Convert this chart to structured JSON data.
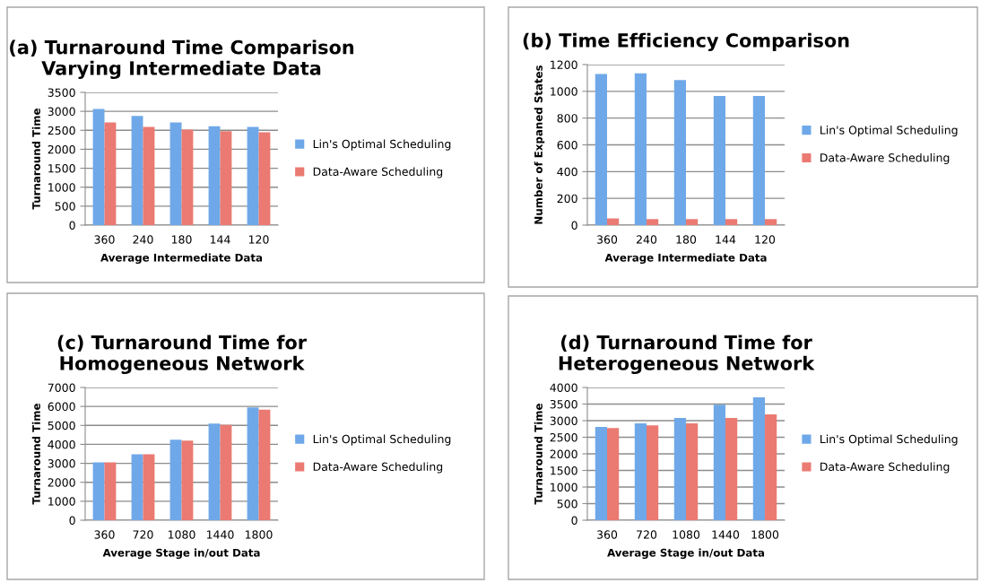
{
  "chart_data": [
    {
      "type": "bar",
      "title": "(a) Turnaround Time Comparison\nVarying Intermediate Data",
      "xlabel": "Average Intermediate Data",
      "ylabel": "Turnaround Time",
      "categories": [
        "360",
        "240",
        "180",
        "144",
        "120"
      ],
      "series": [
        {
          "name": "Lin's Optimal Scheduling",
          "color": "#6fa8e8",
          "values": [
            3060,
            2880,
            2710,
            2610,
            2590
          ]
        },
        {
          "name": "Data-Aware Scheduling",
          "color": "#ea7a72",
          "values": [
            2710,
            2590,
            2520,
            2480,
            2450
          ]
        }
      ],
      "ylim": [
        0,
        3500
      ],
      "yticks": [
        0,
        500,
        1000,
        1500,
        2000,
        2500,
        3000,
        3500
      ],
      "grid": "y",
      "legend": "right"
    },
    {
      "type": "bar",
      "title": "(b) Time Efficiency Comparison",
      "xlabel": "Average Intermediate Data",
      "ylabel": "Number of Expaned States",
      "categories": [
        "360",
        "240",
        "180",
        "144",
        "120"
      ],
      "series": [
        {
          "name": "Lin's Optimal Scheduling",
          "color": "#6fa8e8",
          "values": [
            1130,
            1135,
            1085,
            965,
            965
          ]
        },
        {
          "name": "Data-Aware Scheduling",
          "color": "#ea7a72",
          "values": [
            50,
            45,
            45,
            45,
            45
          ]
        }
      ],
      "ylim": [
        0,
        1200
      ],
      "yticks": [
        0,
        200,
        400,
        600,
        800,
        1000,
        1200
      ],
      "grid": "y",
      "legend": "right"
    },
    {
      "type": "bar",
      "title": "(c) Turnaround Time for\nHomogeneous Network",
      "xlabel": "Average Stage in/out Data",
      "ylabel": "Turnaround Time",
      "categories": [
        "360",
        "720",
        "1080",
        "1440",
        "1800"
      ],
      "series": [
        {
          "name": "Lin's Optimal Scheduling",
          "color": "#6fa8e8",
          "values": [
            3050,
            3480,
            4250,
            5100,
            5950
          ]
        },
        {
          "name": "Data-Aware Scheduling",
          "color": "#ea7a72",
          "values": [
            3050,
            3480,
            4200,
            5020,
            5830
          ]
        }
      ],
      "ylim": [
        0,
        7000
      ],
      "yticks": [
        0,
        1000,
        2000,
        3000,
        4000,
        5000,
        6000,
        7000
      ],
      "grid": "y",
      "legend": "right"
    },
    {
      "type": "bar",
      "title": "(d) Turnaround Time for\nHeterogeneous Network",
      "xlabel": "Average Stage in/out Data",
      "ylabel": "Turnaround Time",
      "categories": [
        "360",
        "720",
        "1080",
        "1440",
        "1800"
      ],
      "series": [
        {
          "name": "Lin's Optimal Scheduling",
          "color": "#6fa8e8",
          "values": [
            2810,
            2920,
            3080,
            3480,
            3700
          ]
        },
        {
          "name": "Data-Aware Scheduling",
          "color": "#ea7a72",
          "values": [
            2780,
            2860,
            2920,
            3080,
            3190
          ]
        }
      ],
      "ylim": [
        0,
        4000
      ],
      "yticks": [
        0,
        500,
        1000,
        1500,
        2000,
        2500,
        3000,
        3500,
        4000
      ],
      "grid": "y",
      "legend": "right"
    }
  ]
}
